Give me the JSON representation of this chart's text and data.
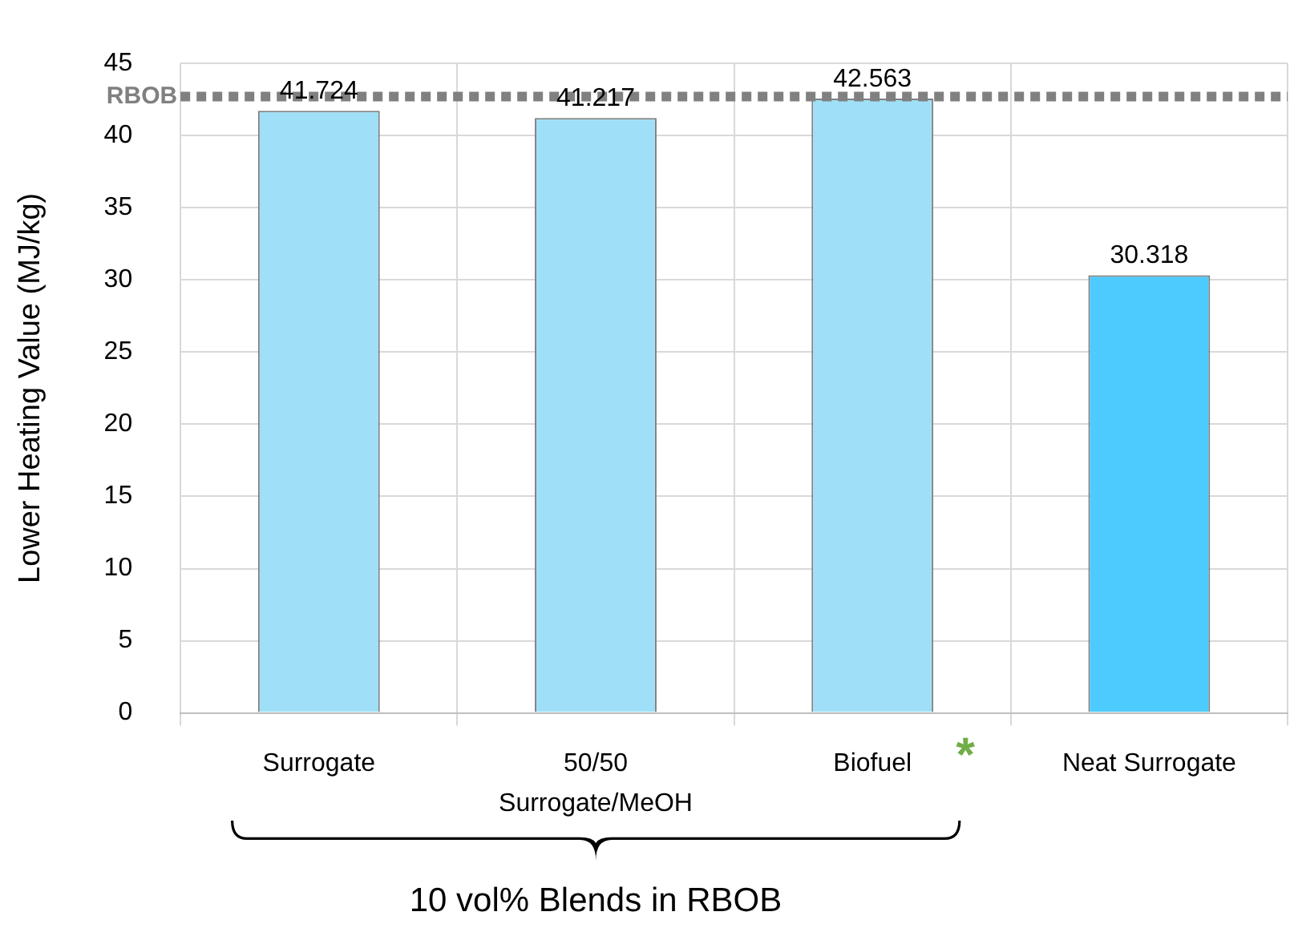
{
  "chart_data": {
    "type": "bar",
    "ylabel": "Lower Heating Value (MJ/kg)",
    "categories": [
      "Surrogate",
      "50/50",
      "Biofuel",
      "Neat Surrogate"
    ],
    "values": [
      41.724,
      41.217,
      42.563,
      30.318
    ],
    "colors": [
      "#9fe0f8",
      "#9fe0f8",
      "#9fe0f8",
      "#4dcbff"
    ],
    "ylim": [
      0,
      45
    ],
    "yticks": [
      0,
      5,
      10,
      15,
      20,
      25,
      30,
      35,
      40,
      45
    ],
    "grid": true,
    "data_labels": true,
    "legend": false,
    "ref_lines": [
      {
        "axis": "y",
        "value": 42.7,
        "label": "RBOB",
        "color": "#808080",
        "line_style": "dotted"
      }
    ],
    "annotations": [
      "Surrogate/MeOH",
      "10 vol% Blends in RBOB",
      {
        "text": "*",
        "x": "Biofuel",
        "y": 0
      }
    ]
  }
}
